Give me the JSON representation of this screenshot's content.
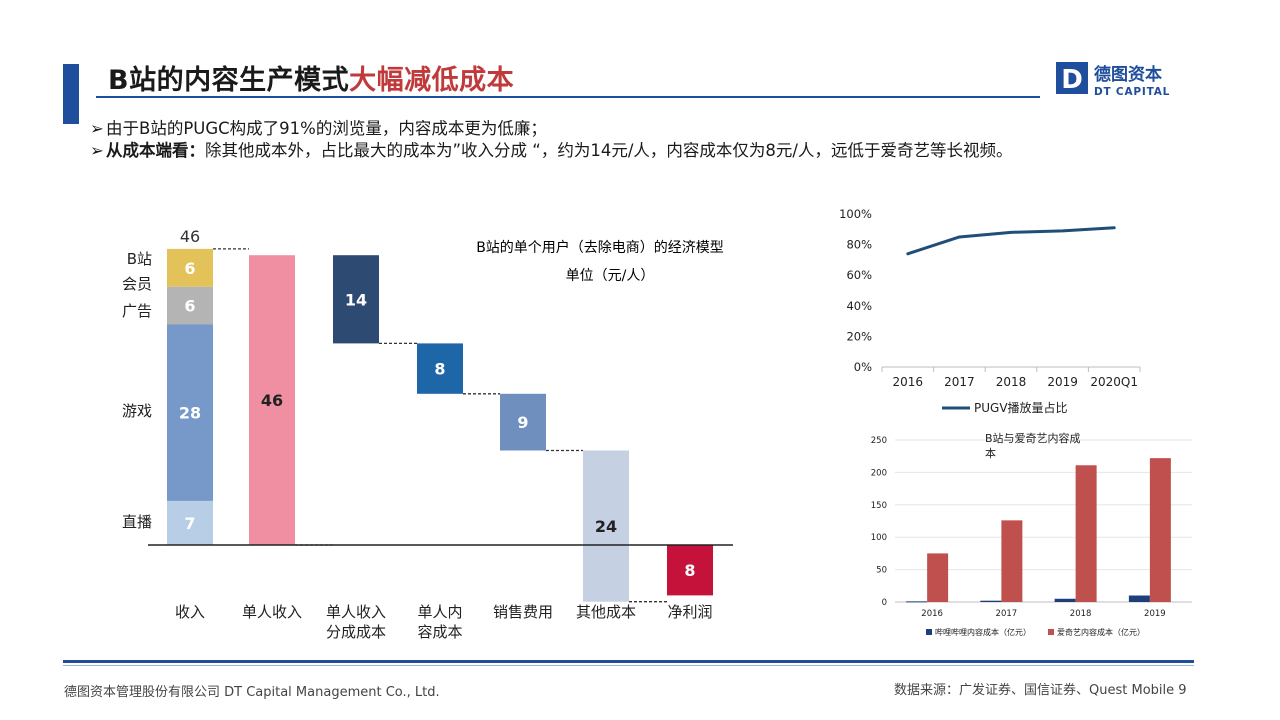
{
  "header": {
    "title_main": "B站的内容生产模式",
    "title_accent": "大幅减低成本",
    "logo": {
      "cn": "德图资本",
      "en": "DT CAPITAL",
      "mark": "D"
    }
  },
  "bullets": [
    {
      "marker": "➢",
      "bold": "",
      "text": "由于B站的PUGC构成了91%的浏览量，内容成本更为低廉；"
    },
    {
      "marker": "➢",
      "bold": "从成本端看：",
      "text": "除其他成本外，占比最大的成本为”收入分成 “，约为14元/人，内容成本仅为8元/人，远低于爱奇艺等长视频。"
    }
  ],
  "colors": {
    "brand_blue": "#1f4e9c",
    "accent_red": "#c0393b"
  },
  "chart_data": [
    {
      "type": "waterfall",
      "title": "B站的单个用户（去除电商）的经济模型",
      "subtitle": "单位（元/人）",
      "total_label": "46",
      "revenue_stack": [
        {
          "name": "直播",
          "value": 7,
          "color": "#b8cde6"
        },
        {
          "name": "游戏",
          "value": 28,
          "color": "#7699c9"
        },
        {
          "name": "广告",
          "value": 6,
          "color": "#b4b4b4"
        },
        {
          "name": "会员",
          "value": 6,
          "color": "#e3c25a"
        },
        {
          "name": "B站",
          "value": null,
          "color": null
        }
      ],
      "categories": [
        "收入",
        "单人收入",
        "单人收入\n分成成本",
        "单人内\n容成本",
        "销售费用",
        "其他成本",
        "净利润"
      ],
      "bars": [
        {
          "category": "单人收入",
          "value": 46,
          "base": 0,
          "label": "46",
          "color": "#f08fa1"
        },
        {
          "category": "单人收入分成成本",
          "value": 14,
          "base": 32,
          "label": "14",
          "color": "#2c4a72"
        },
        {
          "category": "单人内容成本",
          "value": 8,
          "base": 24,
          "label": "8",
          "color": "#1d66a8"
        },
        {
          "category": "销售费用",
          "value": 9,
          "base": 15,
          "label": "9",
          "color": "#6f8fbf"
        },
        {
          "category": "其他成本",
          "value": 24,
          "base": -9,
          "label": "24",
          "color": "#c5d0e3"
        },
        {
          "category": "净利润",
          "value": 8,
          "base": -8,
          "label": "8",
          "color": "#c4123a"
        }
      ]
    },
    {
      "type": "line",
      "x": [
        "2016",
        "2017",
        "2018",
        "2019",
        "2020Q1"
      ],
      "series": [
        {
          "name": "PUGV播放量占比",
          "values": [
            74,
            85,
            88,
            89,
            91
          ],
          "color": "#1f4e79"
        }
      ],
      "yticks": [
        "100%",
        "80%",
        "60%",
        "40%",
        "20%",
        "0%"
      ],
      "ylim": [
        0,
        100
      ],
      "legend": "bottom"
    },
    {
      "type": "bar",
      "title": "B站与爱奇艺内容成本",
      "categories": [
        "2016",
        "2017",
        "2018",
        "2019"
      ],
      "series": [
        {
          "name": "哔哩哔哩内容成本（亿元）",
          "values": [
            1,
            2,
            5,
            10
          ],
          "color": "#1f3f7a"
        },
        {
          "name": "爱奇艺内容成本（亿元）",
          "values": [
            75,
            126,
            211,
            222
          ],
          "color": "#c0504d"
        }
      ],
      "yticks": [
        "250",
        "200",
        "150",
        "100",
        "50",
        "0"
      ],
      "ylim": [
        0,
        250
      ],
      "legend": "bottom"
    }
  ],
  "footer": {
    "company": "德图资本管理股份有限公司  DT Capital  Management  Co., Ltd.",
    "source": "数据来源：广发证券、国信证券、Quest   Mobile",
    "page": "9"
  }
}
